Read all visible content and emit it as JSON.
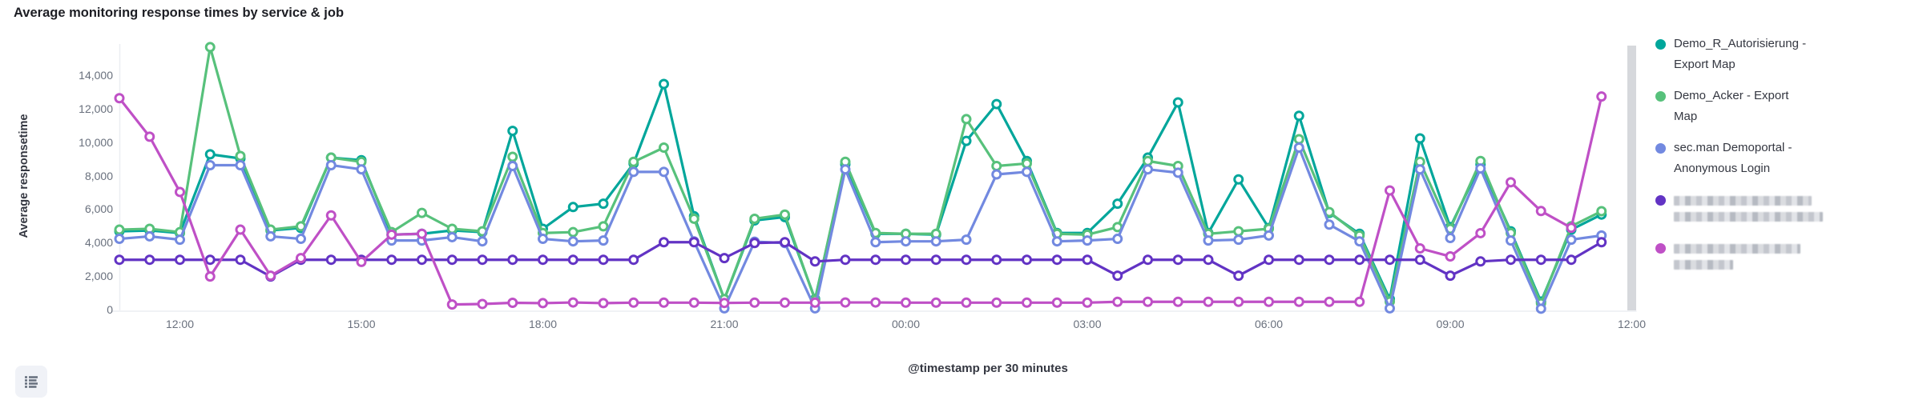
{
  "panel": {
    "title": "Average monitoring response times by service & job",
    "background_color": "#ffffff",
    "endzone_color": "#d6d8dc",
    "axis_line_color": "#eceef2"
  },
  "legend": {
    "items": [
      {
        "label": "Demo_R_Autorisierung - Export Map",
        "lines": [
          "Demo_R_Autorisierung -",
          "Export Map"
        ],
        "color": "#00a69b",
        "redacted": false
      },
      {
        "label": "Demo_Acker - Export Map",
        "lines": [
          "Demo_Acker - Export",
          "Map"
        ],
        "color": "#57c17b",
        "redacted": false
      },
      {
        "label": "sec.man Demoportal - Anonymous Login",
        "lines": [
          "sec.man Demoportal -",
          "Anonymous Login"
        ],
        "color": "#7289e0",
        "redacted": false
      },
      {
        "label": "",
        "lines": [],
        "redacted": true,
        "redacted_line_widths": [
          172,
          186
        ],
        "color": "#6233c4"
      },
      {
        "label": "",
        "lines": [],
        "redacted": true,
        "redacted_line_widths": [
          158,
          74
        ],
        "color": "#bf50c6"
      }
    ]
  },
  "toolbar": {
    "legend_toggle_icon": "list-icon"
  },
  "chart_data": {
    "type": "line",
    "title": "Average monitoring response times by service & job",
    "xlabel": "@timestamp per 30 minutes",
    "ylabel": "Average responsetime",
    "ylim": [
      0,
      15900
    ],
    "grid": false,
    "legend_position": "right",
    "marker_style": "hollow-circle",
    "y_ticks": [
      0,
      2000,
      4000,
      6000,
      8000,
      10000,
      12000,
      14000
    ],
    "y_tick_labels": [
      "0",
      "2,000",
      "4,000",
      "6,000",
      "8,000",
      "10,000",
      "12,000",
      "14,000"
    ],
    "x_tick_labels": [
      "12:00",
      "15:00",
      "18:00",
      "21:00",
      "00:00",
      "03:00",
      "06:00",
      "09:00",
      "12:00"
    ],
    "x": [
      "11:00",
      "11:30",
      "12:00",
      "12:30",
      "13:00",
      "13:30",
      "14:00",
      "14:30",
      "15:00",
      "15:30",
      "16:00",
      "16:30",
      "17:00",
      "17:30",
      "18:00",
      "18:30",
      "19:00",
      "19:30",
      "20:00",
      "20:30",
      "21:00",
      "21:30",
      "22:00",
      "22:30",
      "23:00",
      "23:30",
      "00:00",
      "00:30",
      "01:00",
      "01:30",
      "02:00",
      "02:30",
      "03:00",
      "03:30",
      "04:00",
      "04:30",
      "05:00",
      "05:30",
      "06:00",
      "06:30",
      "07:00",
      "07:30",
      "08:00",
      "08:30",
      "09:00",
      "09:30",
      "10:00",
      "10:30",
      "11:00",
      "11:30"
    ],
    "series": [
      {
        "name": "Demo_R_Autorisierung - Export Map",
        "color": "#00a69b",
        "values": [
          4700,
          4750,
          4600,
          9300,
          9050,
          4750,
          4900,
          9100,
          8950,
          4500,
          4550,
          4750,
          4650,
          10700,
          4850,
          6150,
          6350,
          8750,
          13500,
          5600,
          650,
          5350,
          5550,
          650,
          8700,
          4550,
          4550,
          4500,
          10100,
          12300,
          8900,
          4600,
          4600,
          6350,
          9100,
          12400,
          4600,
          7800,
          4900,
          11600,
          5800,
          4550,
          650,
          10250,
          4950,
          8700,
          4700,
          500,
          4800,
          5700
        ]
      },
      {
        "name": "Demo_Acker - Export Map",
        "color": "#57c17b",
        "values": [
          4800,
          4850,
          4650,
          15700,
          9200,
          4800,
          5000,
          9100,
          8850,
          4650,
          5800,
          4850,
          4700,
          9150,
          4600,
          4650,
          5000,
          8850,
          9700,
          5450,
          650,
          5450,
          5700,
          600,
          8850,
          4600,
          4550,
          4550,
          11400,
          8600,
          8750,
          4550,
          4500,
          4950,
          8900,
          8600,
          4550,
          4700,
          4850,
          10200,
          5850,
          4450,
          500,
          8850,
          4850,
          8900,
          4600,
          400,
          5000,
          5900
        ]
      },
      {
        "name": "sec.man Demoportal - Anonymous Login",
        "color": "#7289e0",
        "values": [
          4250,
          4400,
          4200,
          8650,
          8650,
          4400,
          4250,
          8650,
          8400,
          4150,
          4150,
          4350,
          4100,
          8600,
          4250,
          4100,
          4150,
          8250,
          8250,
          4100,
          100,
          4080,
          4000,
          100,
          8400,
          4050,
          4100,
          4100,
          4200,
          8100,
          8250,
          4100,
          4150,
          4250,
          8400,
          8200,
          4150,
          4200,
          4450,
          9700,
          5100,
          4100,
          100,
          8400,
          4300,
          8450,
          4150,
          80,
          4200,
          4450
        ]
      },
      {
        "name": "redacted-series-4",
        "color": "#6233c4",
        "values": [
          3000,
          3000,
          3000,
          3000,
          3000,
          2000,
          3000,
          3000,
          3000,
          3000,
          3000,
          3000,
          3000,
          3000,
          3000,
          3000,
          3000,
          3000,
          4050,
          4050,
          3100,
          4000,
          4050,
          2900,
          3000,
          3000,
          3000,
          3000,
          3000,
          3000,
          3000,
          3000,
          3000,
          2050,
          3000,
          3000,
          3000,
          2050,
          3000,
          3000,
          3000,
          3000,
          3000,
          3000,
          2050,
          2900,
          3000,
          3000,
          3000,
          4050
        ]
      },
      {
        "name": "redacted-series-5",
        "color": "#bf50c6",
        "values": [
          12650,
          10350,
          7050,
          2000,
          4800,
          2050,
          3100,
          5650,
          2870,
          4500,
          4550,
          330,
          360,
          430,
          410,
          450,
          410,
          440,
          440,
          440,
          420,
          440,
          440,
          440,
          450,
          450,
          440,
          440,
          440,
          440,
          440,
          440,
          440,
          490,
          490,
          490,
          490,
          490,
          490,
          490,
          490,
          490,
          7140,
          3680,
          3200,
          4590,
          7630,
          5910,
          4910,
          12750
        ]
      }
    ]
  }
}
